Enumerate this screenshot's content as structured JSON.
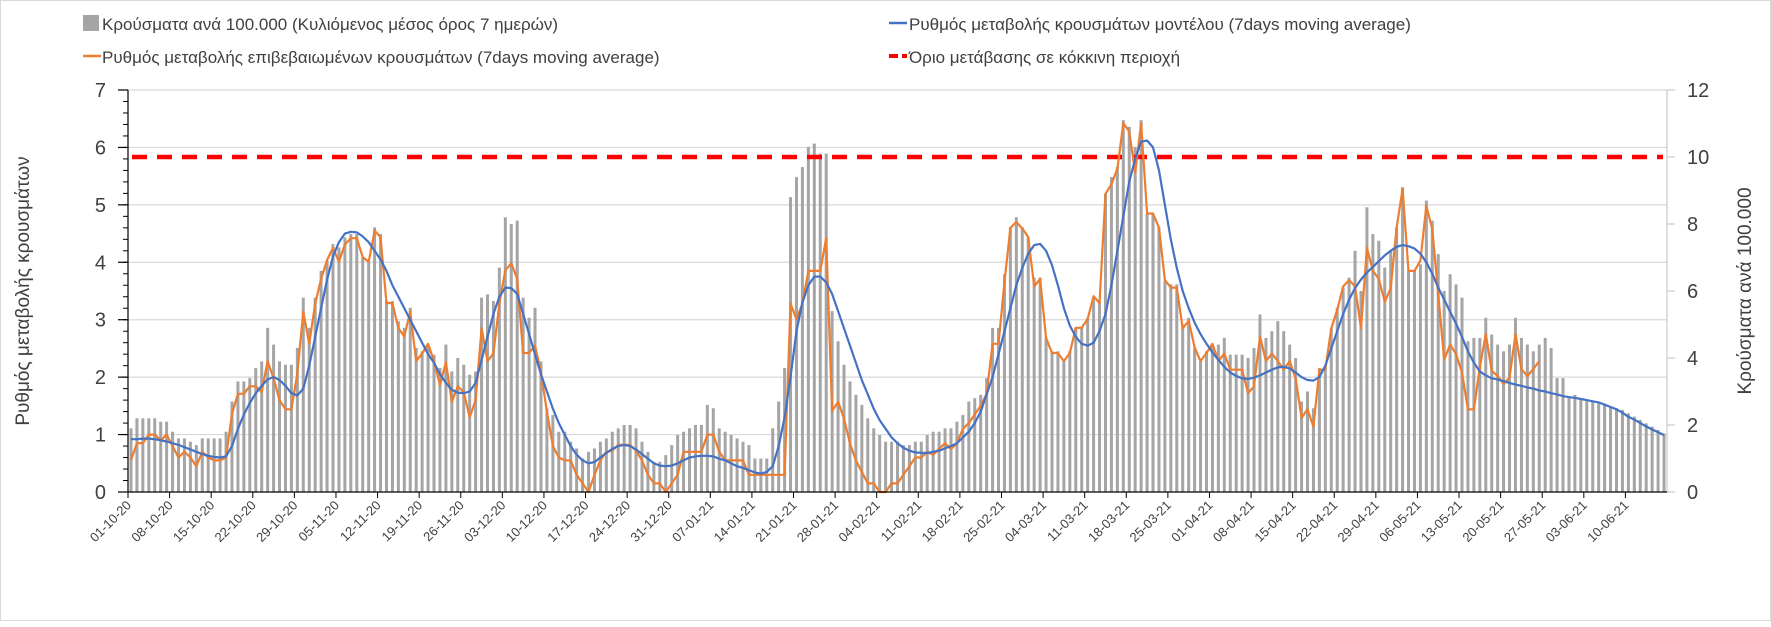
{
  "chart_data": {
    "type": "bar+line",
    "legend": {
      "placement": "top",
      "items": [
        {
          "label": "Κρούσματα ανά 100.000 (Κυλιόμενος μέσος όρος 7 ημερών)",
          "kind": "bar",
          "color": "#a5a5a5"
        },
        {
          "label": "Ρυθμός μεταβολής κρουσμάτων μοντέλου (7days moving average)",
          "kind": "line",
          "color": "#4472c4"
        },
        {
          "label": "Ρυθμός μεταβολής επιβεβαιωμένων κρουσμάτων (7days moving average)",
          "kind": "line",
          "color": "#ed7d31"
        },
        {
          "label": "Όριο μετάβασης σε κόκκινη περιοχή",
          "kind": "dashed",
          "color": "#ff0000"
        }
      ]
    },
    "y_left": {
      "label": "Ρυθμός μεταβολής κρουσμάτων",
      "range": [
        0,
        7
      ],
      "ticks": [
        "0",
        "1",
        "2",
        "3",
        "4",
        "5",
        "6",
        "7"
      ]
    },
    "y_right": {
      "label": "Κρούσματα ανά 100.000",
      "range": [
        0,
        12
      ],
      "ticks": [
        "0",
        "2",
        "4",
        "6",
        "8",
        "10",
        "12"
      ]
    },
    "grid": true,
    "x_start": "01-10-20",
    "x_tick_every_days": 7,
    "x_ticks": [
      "01-10-20",
      "08-10-20",
      "15-10-20",
      "22-10-20",
      "29-10-20",
      "05-11-20",
      "12-11-20",
      "19-11-20",
      "26-11-20",
      "03-12-20",
      "10-12-20",
      "17-12-20",
      "24-12-20",
      "31-12-20",
      "07-01-21",
      "14-01-21",
      "21-01-21",
      "28-01-21",
      "04-02-21",
      "11-02-21",
      "18-02-21",
      "25-02-21",
      "04-03-21",
      "11-03-21",
      "18-03-21",
      "25-03-21",
      "01-04-21",
      "08-04-21",
      "15-04-21",
      "22-04-21",
      "29-04-21",
      "06-05-21",
      "13-05-21",
      "20-05-21",
      "27-05-21",
      "03-06-21",
      "10-06-21"
    ],
    "threshold": {
      "axis": "right",
      "value": 10
    },
    "bars_cases_per_100k": [
      1.9,
      2.2,
      2.2,
      2.2,
      2.2,
      2.1,
      2.1,
      1.8,
      1.6,
      1.6,
      1.5,
      1.4,
      1.6,
      1.6,
      1.6,
      1.6,
      1.8,
      2.7,
      3.3,
      3.3,
      3.4,
      3.7,
      3.9,
      4.9,
      4.4,
      3.9,
      3.8,
      3.8,
      4.3,
      5.8,
      4.9,
      5.8,
      6.6,
      6.9,
      7.4,
      7.3,
      7.6,
      7.7,
      7.7,
      7.0,
      6.9,
      7.9,
      7.7,
      5.7,
      5.7,
      5.1,
      4.9,
      5.5,
      4.3,
      4.2,
      4.4,
      4.1,
      3.7,
      4.4,
      3.6,
      4.0,
      3.8,
      3.5,
      3.6,
      5.8,
      5.9,
      5.7,
      6.7,
      8.2,
      8.0,
      8.1,
      5.8,
      5.2,
      5.5,
      3.9,
      2.5,
      2.3,
      1.8,
      1.8,
      1.5,
      1.3,
      1.0,
      1.2,
      1.3,
      1.5,
      1.6,
      1.8,
      1.9,
      2.0,
      2.0,
      1.9,
      1.5,
      1.2,
      0.9,
      0.9,
      1.1,
      1.4,
      1.7,
      1.8,
      1.9,
      2.0,
      2.0,
      2.6,
      2.5,
      1.9,
      1.8,
      1.7,
      1.6,
      1.5,
      1.4,
      1.0,
      1.0,
      1.0,
      1.9,
      2.7,
      3.7,
      8.8,
      9.4,
      9.7,
      10.3,
      10.4,
      10.1,
      10.1,
      5.4,
      4.5,
      3.8,
      3.3,
      2.9,
      2.6,
      2.2,
      1.9,
      1.7,
      1.5,
      1.5,
      1.5,
      1.4,
      1.4,
      1.5,
      1.5,
      1.7,
      1.8,
      1.8,
      1.9,
      1.9,
      2.1,
      2.3,
      2.7,
      2.8,
      2.9,
      3.4,
      4.9,
      4.9,
      6.5,
      7.9,
      8.2,
      7.9,
      7.6,
      6.4,
      6.4,
      4.6,
      4.2,
      4.2,
      3.9,
      4.2,
      4.9,
      4.9,
      5.2,
      5.8,
      5.7,
      8.9,
      9.4,
      9.7,
      11.1,
      10.9,
      10.3,
      11.1,
      8.3,
      8.3,
      7.9,
      6.3,
      6.2,
      6.2,
      5.0,
      5.2,
      4.3,
      3.9,
      4.2,
      4.4,
      4.4,
      4.6,
      4.1,
      4.1,
      4.1,
      4.0,
      4.3,
      5.3,
      4.6,
      4.8,
      5.1,
      4.8,
      4.4,
      4.0,
      2.7,
      3.0,
      2.5,
      3.7,
      3.7,
      4.9,
      5.5,
      6.1,
      6.4,
      7.2,
      6.0,
      8.5,
      7.7,
      7.5,
      6.7,
      7.2,
      7.9,
      9.1,
      6.6,
      6.6,
      6.8,
      8.7,
      8.1,
      7.1,
      6.0,
      6.5,
      6.2,
      5.8,
      4.5,
      4.6,
      4.6,
      5.2,
      4.7,
      4.4,
      4.2,
      4.4,
      5.2,
      4.6,
      4.4,
      4.2,
      4.4,
      4.6,
      4.3,
      3.4,
      3.4,
      2.8,
      2.9,
      2.8,
      2.75,
      2.7,
      2.65,
      2.6,
      2.55,
      2.5,
      2.45,
      2.35,
      2.25,
      2.15,
      2.05,
      1.95,
      1.85,
      1.75
    ],
    "model_rate": [
      0.92,
      0.92,
      0.93,
      0.93,
      0.92,
      0.9,
      0.88,
      0.85,
      0.82,
      0.78,
      0.74,
      0.7,
      0.66,
      0.63,
      0.61,
      0.6,
      0.62,
      0.8,
      1.1,
      1.35,
      1.55,
      1.72,
      1.85,
      1.96,
      2.0,
      1.95,
      1.85,
      1.72,
      1.68,
      1.8,
      2.2,
      2.7,
      3.2,
      3.7,
      4.1,
      4.35,
      4.5,
      4.53,
      4.52,
      4.45,
      4.35,
      4.2,
      4.05,
      3.85,
      3.6,
      3.4,
      3.2,
      3.0,
      2.8,
      2.6,
      2.4,
      2.25,
      2.05,
      1.9,
      1.78,
      1.73,
      1.72,
      1.75,
      1.9,
      2.3,
      2.7,
      3.1,
      3.4,
      3.56,
      3.55,
      3.45,
      3.1,
      2.75,
      2.4,
      2.05,
      1.75,
      1.45,
      1.2,
      1.0,
      0.8,
      0.65,
      0.55,
      0.5,
      0.52,
      0.6,
      0.68,
      0.75,
      0.8,
      0.82,
      0.8,
      0.74,
      0.66,
      0.58,
      0.5,
      0.46,
      0.45,
      0.46,
      0.5,
      0.55,
      0.6,
      0.62,
      0.63,
      0.63,
      0.62,
      0.58,
      0.55,
      0.5,
      0.45,
      0.42,
      0.38,
      0.34,
      0.32,
      0.35,
      0.45,
      0.8,
      1.3,
      2.0,
      2.8,
      3.3,
      3.6,
      3.75,
      3.75,
      3.65,
      3.45,
      3.15,
      2.85,
      2.55,
      2.25,
      1.95,
      1.7,
      1.45,
      1.25,
      1.1,
      0.95,
      0.85,
      0.77,
      0.72,
      0.69,
      0.68,
      0.68,
      0.7,
      0.72,
      0.76,
      0.8,
      0.85,
      0.95,
      1.05,
      1.2,
      1.4,
      1.7,
      2.0,
      2.4,
      2.8,
      3.2,
      3.6,
      3.9,
      4.15,
      4.3,
      4.32,
      4.2,
      3.95,
      3.6,
      3.2,
      2.9,
      2.7,
      2.58,
      2.55,
      2.6,
      2.8,
      3.1,
      3.6,
      4.2,
      4.8,
      5.4,
      5.8,
      6.1,
      6.12,
      6.0,
      5.6,
      5.0,
      4.4,
      3.9,
      3.5,
      3.2,
      2.95,
      2.75,
      2.58,
      2.43,
      2.3,
      2.18,
      2.08,
      2.02,
      1.98,
      1.97,
      1.99,
      2.03,
      2.08,
      2.13,
      2.17,
      2.18,
      2.15,
      2.08,
      2.0,
      1.95,
      1.94,
      2.0,
      2.2,
      2.5,
      2.8,
      3.1,
      3.35,
      3.55,
      3.7,
      3.82,
      3.92,
      4.02,
      4.12,
      4.2,
      4.27,
      4.3,
      4.28,
      4.24,
      4.15,
      4.0,
      3.8,
      3.56,
      3.35,
      3.14,
      2.93,
      2.7,
      2.45,
      2.25,
      2.1,
      2.03,
      1.98,
      1.96,
      1.93,
      1.9,
      1.87,
      1.85,
      1.82,
      1.8,
      1.77,
      1.75,
      1.72,
      1.7,
      1.67,
      1.65,
      1.64,
      1.62,
      1.6,
      1.58,
      1.56,
      1.52,
      1.48,
      1.44,
      1.38,
      1.31,
      1.26,
      1.2,
      1.14,
      1.09,
      1.04,
      0.99
    ],
    "confirmed_rate": [
      0.55,
      0.85,
      0.85,
      1.0,
      1.0,
      0.9,
      1.0,
      0.8,
      0.6,
      0.7,
      0.6,
      0.45,
      0.7,
      0.6,
      0.55,
      0.55,
      0.6,
      1.36,
      1.71,
      1.71,
      1.84,
      1.84,
      1.74,
      2.28,
      1.98,
      1.6,
      1.44,
      1.44,
      2.06,
      3.14,
      2.58,
      3.28,
      3.71,
      4.04,
      4.25,
      4.01,
      4.31,
      4.42,
      4.42,
      4.09,
      4.01,
      4.55,
      4.44,
      3.29,
      3.29,
      2.85,
      2.71,
      3.14,
      2.28,
      2.41,
      2.58,
      2.28,
      1.86,
      2.26,
      1.57,
      1.84,
      1.74,
      1.3,
      1.6,
      2.85,
      2.28,
      2.41,
      3.28,
      3.86,
      3.98,
      3.71,
      2.42,
      2.42,
      2.55,
      2.09,
      1.4,
      0.8,
      0.6,
      0.55,
      0.55,
      0.3,
      0.15,
      0.0,
      0.3,
      0.55,
      0.7,
      0.72,
      0.82,
      0.82,
      0.82,
      0.72,
      0.55,
      0.3,
      0.15,
      0.15,
      0.0,
      0.15,
      0.3,
      0.7,
      0.7,
      0.7,
      0.7,
      1.0,
      1.0,
      0.7,
      0.55,
      0.55,
      0.55,
      0.55,
      0.3,
      0.3,
      0.3,
      0.3,
      0.3,
      0.3,
      0.3,
      3.28,
      3.01,
      3.28,
      3.85,
      3.85,
      3.85,
      4.42,
      1.41,
      1.57,
      1.28,
      0.84,
      0.55,
      0.35,
      0.15,
      0.15,
      0.0,
      0.0,
      0.15,
      0.15,
      0.3,
      0.45,
      0.6,
      0.6,
      0.7,
      0.65,
      0.75,
      0.85,
      0.75,
      0.85,
      1.1,
      1.2,
      1.35,
      1.5,
      1.71,
      2.58,
      2.58,
      3.66,
      4.6,
      4.7,
      4.59,
      4.44,
      3.58,
      3.71,
      2.68,
      2.42,
      2.42,
      2.28,
      2.42,
      2.86,
      2.86,
      3.01,
      3.41,
      3.29,
      5.19,
      5.36,
      5.63,
      6.42,
      6.28,
      5.56,
      6.42,
      4.85,
      4.85,
      4.6,
      3.69,
      3.56,
      3.56,
      2.85,
      2.98,
      2.52,
      2.28,
      2.42,
      2.58,
      2.28,
      2.41,
      2.13,
      2.13,
      2.13,
      1.72,
      1.84,
      2.71,
      2.28,
      2.41,
      2.28,
      2.13,
      2.28,
      1.98,
      1.29,
      1.44,
      1.14,
      2.13,
      2.13,
      2.85,
      3.17,
      3.58,
      3.69,
      3.58,
      2.85,
      4.25,
      3.85,
      3.71,
      3.31,
      3.55,
      4.6,
      5.28,
      3.85,
      3.85,
      4.03,
      4.98,
      4.58,
      3.44,
      2.3,
      2.57,
      2.4,
      2.08,
      1.44,
      1.44,
      2.17,
      2.75,
      2.11,
      2.02,
      1.88,
      1.99,
      2.75,
      2.14,
      2.02,
      2.14,
      2.28
    ]
  }
}
